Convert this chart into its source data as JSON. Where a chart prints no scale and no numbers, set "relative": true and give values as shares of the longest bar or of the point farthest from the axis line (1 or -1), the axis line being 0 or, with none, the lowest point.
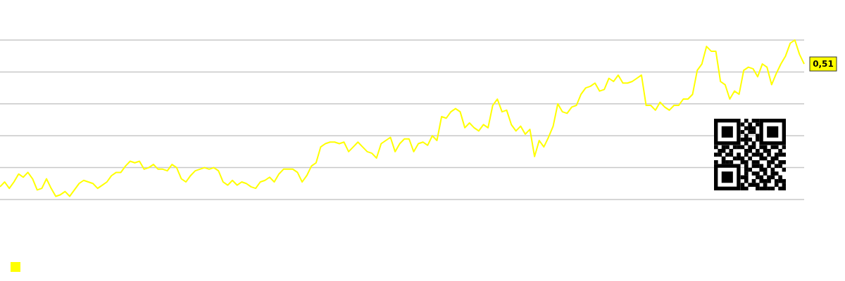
{
  "chart_data": {
    "type": "line",
    "relative": true,
    "grid": true,
    "marker": "none",
    "categories": [
      null,
      null,
      null,
      null,
      null,
      null,
      null,
      null,
      null,
      null,
      null,
      null,
      null,
      null,
      null,
      null,
      null,
      null,
      null,
      null,
      null,
      null,
      null,
      null,
      null,
      null,
      null,
      null,
      null,
      null,
      null,
      null,
      null,
      null,
      null,
      null,
      null,
      null,
      null,
      null,
      null,
      null,
      null,
      null,
      null,
      null,
      null,
      null,
      null,
      null,
      null,
      null,
      null,
      null,
      null,
      null,
      null,
      null,
      null,
      null,
      null,
      null,
      null,
      null,
      null,
      null,
      null,
      null,
      null,
      null,
      null,
      null,
      null,
      null,
      null,
      null,
      null,
      null,
      null,
      null,
      null,
      null,
      null,
      null,
      null,
      null,
      null,
      null,
      null,
      null,
      null,
      null,
      null,
      null,
      null,
      null,
      null,
      null,
      null,
      null,
      null,
      null,
      null,
      null,
      null,
      null,
      null,
      null,
      null,
      null,
      null,
      null,
      null,
      null,
      null,
      null,
      null,
      null,
      null,
      null,
      null,
      null,
      null,
      null,
      null,
      null,
      null,
      null,
      null,
      null,
      null,
      null,
      null,
      null,
      null,
      null,
      null,
      null,
      null,
      null,
      null,
      null,
      null,
      null,
      null,
      null,
      null,
      null,
      null,
      null,
      null,
      null,
      null,
      null,
      null,
      null,
      null,
      null,
      null,
      null,
      null,
      null,
      null,
      null,
      null,
      null,
      null,
      null,
      null,
      null,
      null,
      null,
      null,
      null
    ],
    "series": [
      {
        "color": "#ffff00",
        "values": [
          0.08,
          0.11,
          0.07,
          0.11,
          0.16,
          0.14,
          0.17,
          0.13,
          0.06,
          0.07,
          0.13,
          0.07,
          0.02,
          0.03,
          0.05,
          0.02,
          0.06,
          0.1,
          0.12,
          0.11,
          0.1,
          0.07,
          0.09,
          0.11,
          0.15,
          0.17,
          0.17,
          0.21,
          0.24,
          0.23,
          0.24,
          0.19,
          0.2,
          0.22,
          0.19,
          0.19,
          0.18,
          0.22,
          0.2,
          0.13,
          0.11,
          0.15,
          0.18,
          0.19,
          0.2,
          0.19,
          0.2,
          0.18,
          0.11,
          0.09,
          0.12,
          0.09,
          0.11,
          0.1,
          0.08,
          0.07,
          0.11,
          0.12,
          0.14,
          0.11,
          0.16,
          0.19,
          0.19,
          0.19,
          0.17,
          0.11,
          0.15,
          0.21,
          0.23,
          0.33,
          0.35,
          0.36,
          0.36,
          0.35,
          0.36,
          0.3,
          0.33,
          0.36,
          0.33,
          0.3,
          0.29,
          0.26,
          0.35,
          0.37,
          0.39,
          0.3,
          0.35,
          0.38,
          0.38,
          0.3,
          0.35,
          0.36,
          0.34,
          0.4,
          0.37,
          0.52,
          0.51,
          0.55,
          0.57,
          0.55,
          0.45,
          0.48,
          0.45,
          0.43,
          0.47,
          0.45,
          0.59,
          0.63,
          0.55,
          0.56,
          0.47,
          0.43,
          0.46,
          0.41,
          0.44,
          0.27,
          0.37,
          0.33,
          0.39,
          0.46,
          0.6,
          0.55,
          0.54,
          0.58,
          0.59,
          0.66,
          0.7,
          0.71,
          0.73,
          0.68,
          0.69,
          0.76,
          0.74,
          0.78,
          0.73,
          0.73,
          0.74,
          0.76,
          0.78,
          0.59,
          0.59,
          0.56,
          0.61,
          0.58,
          0.56,
          0.59,
          0.59,
          0.63,
          0.63,
          0.66,
          0.81,
          0.85,
          0.96,
          0.93,
          0.93,
          0.74,
          0.72,
          0.63,
          0.68,
          0.66,
          0.81,
          0.83,
          0.82,
          0.77,
          0.85,
          0.83,
          0.72,
          0.79,
          0.85,
          0.9,
          0.98,
          1,
          0.91,
          0.85
        ]
      }
    ],
    "annotations": [
      "0,51"
    ]
  }
}
